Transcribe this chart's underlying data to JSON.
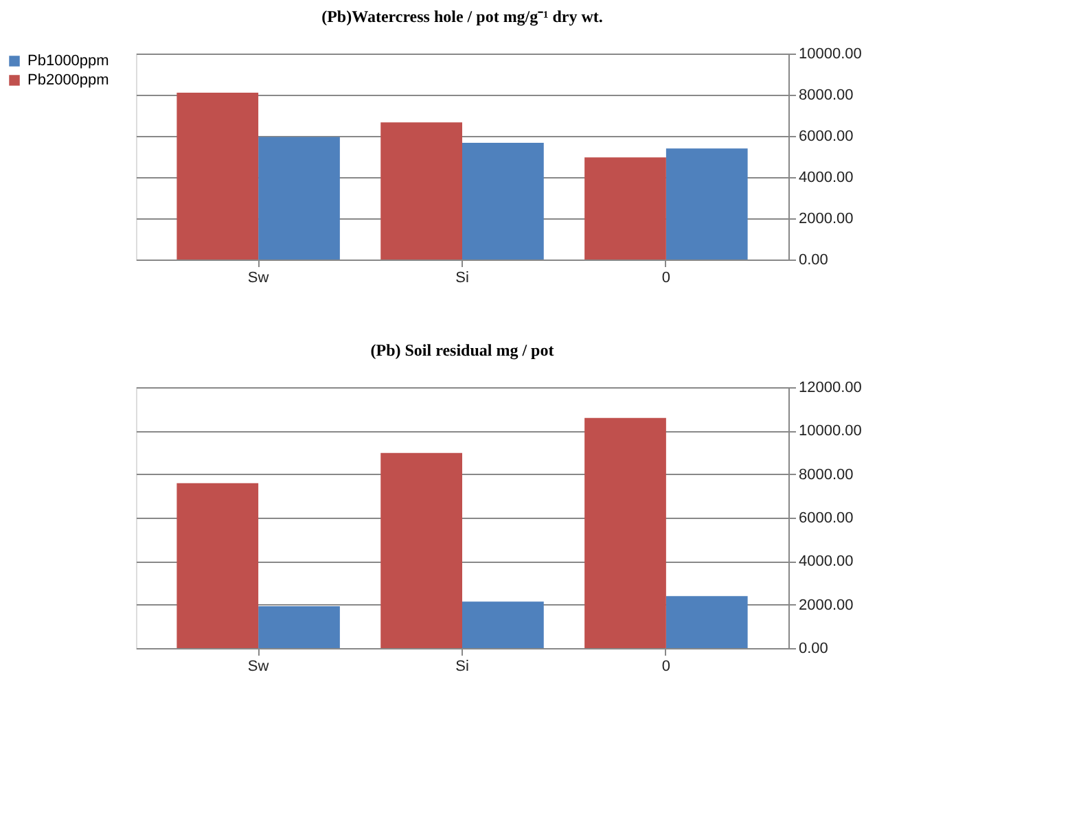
{
  "chart_data": [
    {
      "type": "bar",
      "title": "(Pb)Watercress hole / pot mg/g⁻¹ dry wt.",
      "categories": [
        "Sw",
        "Si",
        "0"
      ],
      "series": [
        {
          "name": "Pb1000ppm",
          "color": "#4f81bd",
          "values": [
            5950,
            5670,
            5390
          ]
        },
        {
          "name": "Pb2000ppm",
          "color": "#c0504d",
          "values": [
            8100,
            6660,
            4960
          ]
        }
      ],
      "ylim": [
        0,
        10000
      ],
      "yticks": [
        {
          "value": 0,
          "label": "0.00"
        },
        {
          "value": 2000,
          "label": "2000.00"
        },
        {
          "value": 4000,
          "label": "4000.00"
        },
        {
          "value": 6000,
          "label": "6000.00"
        },
        {
          "value": 8000,
          "label": "8000.00"
        },
        {
          "value": 10000,
          "label": "10000.00"
        }
      ],
      "grid": "y",
      "legend": "left"
    },
    {
      "type": "bar",
      "title": "(Pb) Soil residual mg / pot",
      "categories": [
        "Sw",
        "Si",
        "0"
      ],
      "series": [
        {
          "name": "Pb1000ppm",
          "color": "#4f81bd",
          "values": [
            1930,
            2140,
            2390
          ]
        },
        {
          "name": "Pb2000ppm",
          "color": "#c0504d",
          "values": [
            7590,
            8980,
            10590
          ]
        }
      ],
      "ylim": [
        0,
        12000
      ],
      "yticks": [
        {
          "value": 0,
          "label": "0.00"
        },
        {
          "value": 2000,
          "label": "2000.00"
        },
        {
          "value": 4000,
          "label": "4000.00"
        },
        {
          "value": 6000,
          "label": "6000.00"
        },
        {
          "value": 8000,
          "label": "8000.00"
        },
        {
          "value": 10000,
          "label": "10000.00"
        },
        {
          "value": 12000,
          "label": "12000.00"
        }
      ],
      "grid": "y",
      "legend": "left"
    }
  ]
}
